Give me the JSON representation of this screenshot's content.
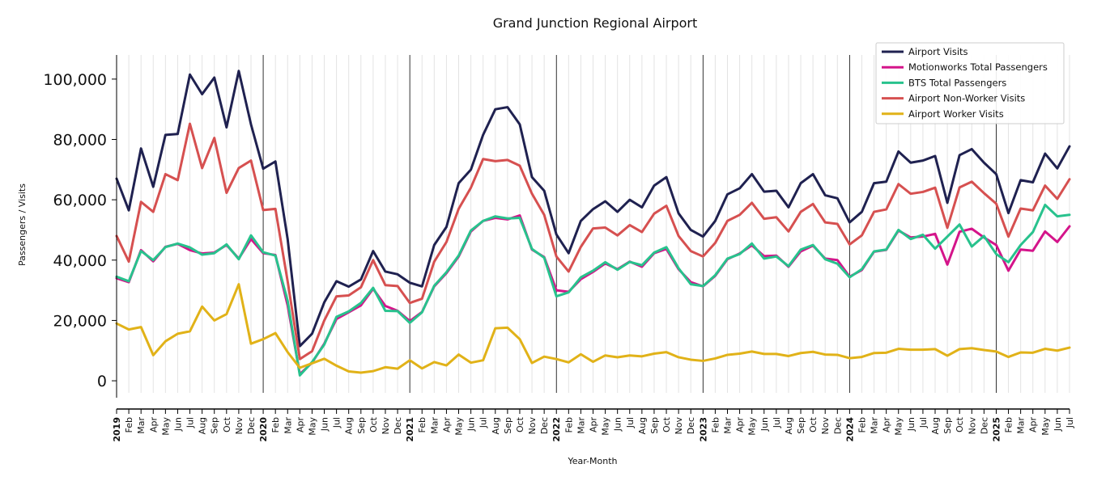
{
  "chart_data": {
    "type": "line",
    "title": "Grand Junction Regional Airport",
    "xlabel": "Year-Month",
    "ylabel": "Passengers / Visits",
    "ylim": [
      -4000,
      108000
    ],
    "yticks": [
      0,
      20000,
      40000,
      60000,
      80000,
      100000
    ],
    "ytick_labels": [
      "0",
      "20,000",
      "40,000",
      "60,000",
      "80,000",
      "100,000"
    ],
    "grid": "vertical minor lines each month, dark lines at each January",
    "legend_position": "top-right",
    "x": [
      "2019-01",
      "2019-02",
      "2019-03",
      "2019-04",
      "2019-05",
      "2019-06",
      "2019-07",
      "2019-08",
      "2019-09",
      "2019-10",
      "2019-11",
      "2019-12",
      "2020-01",
      "2020-02",
      "2020-03",
      "2020-04",
      "2020-05",
      "2020-06",
      "2020-07",
      "2020-08",
      "2020-09",
      "2020-10",
      "2020-11",
      "2020-12",
      "2021-01",
      "2021-02",
      "2021-03",
      "2021-04",
      "2021-05",
      "2021-06",
      "2021-07",
      "2021-08",
      "2021-09",
      "2021-10",
      "2021-11",
      "2021-12",
      "2022-01",
      "2022-02",
      "2022-03",
      "2022-04",
      "2022-05",
      "2022-06",
      "2022-07",
      "2022-08",
      "2022-09",
      "2022-10",
      "2022-11",
      "2022-12",
      "2023-01",
      "2023-02",
      "2023-03",
      "2023-04",
      "2023-05",
      "2023-06",
      "2023-07",
      "2023-08",
      "2023-09",
      "2023-10",
      "2023-11",
      "2023-12",
      "2024-01",
      "2024-02",
      "2024-03",
      "2024-04",
      "2024-05",
      "2024-06",
      "2024-07",
      "2024-08",
      "2024-09",
      "2024-10",
      "2024-11",
      "2024-12",
      "2025-01",
      "2025-02",
      "2025-03",
      "2025-04",
      "2025-05",
      "2025-06",
      "2025-07"
    ],
    "tick_labels": [
      "2019",
      "Feb",
      "Mar",
      "Apr",
      "May",
      "Jun",
      "Jul",
      "Aug",
      "Sep",
      "Oct",
      "Nov",
      "Dec",
      "2020",
      "Feb",
      "Mar",
      "Apr",
      "May",
      "Jun",
      "Jul",
      "Aug",
      "Sep",
      "Oct",
      "Nov",
      "Dec",
      "2021",
      "Feb",
      "Mar",
      "Apr",
      "May",
      "Jun",
      "Jul",
      "Aug",
      "Sep",
      "Oct",
      "Nov",
      "Dec",
      "2022",
      "Feb",
      "Mar",
      "Apr",
      "May",
      "Jun",
      "Jul",
      "Aug",
      "Sep",
      "Oct",
      "Nov",
      "Dec",
      "2023",
      "Feb",
      "Mar",
      "Apr",
      "May",
      "Jun",
      "Jul",
      "Aug",
      "Sep",
      "Oct",
      "Nov",
      "Dec",
      "2024",
      "Feb",
      "Mar",
      "Apr",
      "May",
      "Jun",
      "Jul",
      "Aug",
      "Sep",
      "Oct",
      "Nov",
      "Dec",
      "2025",
      "Feb",
      "Mar",
      "Apr",
      "May",
      "Jun",
      "Jul"
    ],
    "series": [
      {
        "name": "Airport Visits",
        "color": "#1f2150",
        "values": [
          67000,
          56500,
          77000,
          64300,
          81500,
          81800,
          101500,
          95000,
          100500,
          84000,
          102700,
          85000,
          70300,
          72700,
          47000,
          11500,
          15600,
          26000,
          33000,
          31200,
          33600,
          43000,
          36200,
          35300,
          32500,
          31300,
          45000,
          51000,
          65500,
          70000,
          81500,
          90000,
          90700,
          85000,
          67500,
          63000,
          48500,
          42300,
          53000,
          56900,
          59500,
          56000,
          60000,
          57500,
          64700,
          67500,
          55500,
          50000,
          47800,
          53000,
          61800,
          63800,
          68500,
          62700,
          63000,
          57500,
          65500,
          68500,
          61500,
          60500,
          52500,
          56000,
          65500,
          66000,
          76000,
          72300,
          73000,
          74500,
          59000,
          74800,
          76800,
          72300,
          68500,
          55600,
          66500,
          65800,
          75300,
          70400,
          77700
        ]
      },
      {
        "name": "Motionworks Total Passengers",
        "color": "#d4148a",
        "values": [
          34000,
          32700,
          43300,
          39600,
          44400,
          45400,
          43300,
          42200,
          42500,
          45000,
          40500,
          47000,
          42300,
          41700,
          25000,
          2200,
          6000,
          12300,
          20500,
          22700,
          25000,
          30500,
          24800,
          23200,
          19800,
          22800,
          31300,
          35700,
          41200,
          49500,
          53000,
          54000,
          53500,
          54800,
          43500,
          41000,
          30000,
          29500,
          33700,
          36100,
          38900,
          37000,
          39500,
          37800,
          42300,
          43700,
          37000,
          32700,
          31300,
          34800,
          40300,
          42200,
          44900,
          41300,
          41500,
          37800,
          42900,
          44800,
          40500,
          40000,
          34500,
          36700,
          42800,
          43400,
          49800,
          47500,
          47800,
          48700,
          38500,
          49400,
          50400,
          47500,
          45000,
          36500,
          43500,
          43100,
          49500,
          46000,
          51200
        ]
      },
      {
        "name": "BTS Total Passengers",
        "color": "#28c28d",
        "values": [
          34500,
          33000,
          43000,
          40000,
          44300,
          45500,
          44200,
          41800,
          42300,
          45200,
          40300,
          48200,
          42600,
          41500,
          26500,
          1800,
          6200,
          12000,
          21200,
          23000,
          25800,
          30800,
          23200,
          23100,
          19200,
          22700,
          31500,
          36000,
          41500,
          49800,
          53000,
          54500,
          53800,
          54000,
          43700,
          40800,
          28000,
          29300,
          34300,
          36500,
          39300,
          36800,
          39400,
          38300,
          42500,
          44300,
          37300,
          32000,
          31400,
          35000,
          40500,
          42000,
          45500,
          40500,
          41200,
          38000,
          43500,
          45000,
          40300,
          38800,
          34300,
          37000,
          42900,
          43500,
          50000,
          47000,
          48400,
          43800,
          47800,
          51800,
          44500,
          48000,
          42000,
          39300,
          45000,
          49300,
          58300,
          54500,
          55000
        ]
      },
      {
        "name": "Airport Non-Worker Visits",
        "color": "#d65050",
        "values": [
          48000,
          39500,
          59300,
          56000,
          68500,
          66500,
          85200,
          70500,
          80500,
          62300,
          70500,
          73000,
          56600,
          57000,
          33000,
          7200,
          9800,
          20000,
          28000,
          28300,
          31000,
          40000,
          31700,
          31400,
          25800,
          27200,
          39500,
          46000,
          57000,
          64000,
          73500,
          72800,
          73200,
          71300,
          62000,
          55000,
          41200,
          36200,
          44400,
          50500,
          50800,
          48200,
          51600,
          49300,
          55400,
          58000,
          48000,
          43000,
          41200,
          45700,
          53000,
          55000,
          59000,
          53700,
          54200,
          49500,
          56000,
          58600,
          52500,
          52000,
          45200,
          48200,
          56000,
          56800,
          65200,
          62000,
          62600,
          64000,
          50700,
          64100,
          66000,
          62200,
          58700,
          47800,
          57100,
          56500,
          64700,
          60300,
          66800
        ]
      },
      {
        "name": "Airport Worker Visits",
        "color": "#e1b218",
        "values": [
          19000,
          17000,
          17800,
          8500,
          13100,
          15600,
          16400,
          24600,
          20000,
          22100,
          32000,
          12300,
          13800,
          15800,
          9500,
          4300,
          5800,
          7300,
          5000,
          3100,
          2700,
          3200,
          4500,
          4000,
          6800,
          4100,
          6200,
          5100,
          8700,
          6000,
          6800,
          17400,
          17600,
          13800,
          5900,
          8000,
          7200,
          6100,
          8800,
          6300,
          8400,
          7800,
          8400,
          8100,
          9000,
          9500,
          7800,
          7000,
          6600,
          7400,
          8600,
          9000,
          9700,
          8900,
          8900,
          8200,
          9200,
          9600,
          8700,
          8600,
          7500,
          7900,
          9200,
          9300,
          10600,
          10300,
          10300,
          10500,
          8300,
          10500,
          10800,
          10200,
          9700,
          7900,
          9400,
          9300,
          10600,
          10000,
          11000
        ]
      }
    ]
  }
}
